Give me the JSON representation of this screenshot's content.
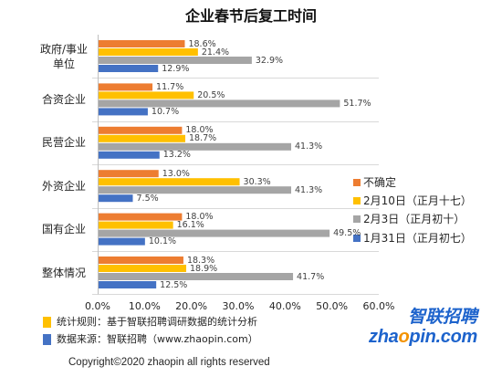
{
  "chart_data": {
    "type": "bar",
    "orientation": "horizontal",
    "title": "企业春节后复工时间",
    "categories": [
      "政府/事业单位",
      "合资企业",
      "民营企业",
      "外资企业",
      "国有企业",
      "整体情况"
    ],
    "series": [
      {
        "name": "不确定",
        "color": "#ED7D31",
        "values": [
          18.6,
          11.7,
          18.0,
          13.0,
          18.0,
          18.3
        ],
        "labels": [
          "18.6%",
          "11.7%",
          "18.0%",
          "13.0%",
          "18.0%",
          "18.3%"
        ]
      },
      {
        "name": "2月10日（正月十七）",
        "color": "#FFC000",
        "values": [
          21.4,
          20.5,
          18.7,
          30.3,
          16.1,
          18.9
        ],
        "labels": [
          "21.4%",
          "20.5%",
          "18.7%",
          "30.3%",
          "16.1%",
          "18.9%"
        ]
      },
      {
        "name": "2月3日（正月初十）",
        "color": "#A5A5A5",
        "values": [
          32.9,
          51.7,
          41.3,
          41.3,
          49.5,
          41.7
        ],
        "labels": [
          "32.9%",
          "51.7%",
          "41.3%",
          "41.3%",
          "49.5%",
          "41.7%"
        ]
      },
      {
        "name": "1月31日（正月初七）",
        "color": "#4472C4",
        "values": [
          12.9,
          10.7,
          13.2,
          7.5,
          10.1,
          12.5
        ],
        "labels": [
          "12.9%",
          "10.7%",
          "13.2%",
          "7.5%",
          "10.1%",
          "12.5%"
        ]
      }
    ],
    "xlim": [
      0,
      60
    ],
    "xticks": [
      "0.0%",
      "10.0%",
      "20.0%",
      "30.0%",
      "40.0%",
      "50.0%",
      "60.0%"
    ],
    "grid": true,
    "legend_position": "right",
    "data_labels": true
  },
  "notes": [
    {
      "marker_color": "#FFC000",
      "text": "统计规则：基于智联招聘调研数据的统计分析"
    },
    {
      "marker_color": "#4472C4",
      "text": "数据来源：智联招聘（www.zhaopin.com）"
    }
  ],
  "logo": {
    "name_cn": "智联招聘",
    "domain_parts": [
      "zha",
      "o",
      "pin.com"
    ],
    "brand_color": "#1D63CC",
    "accent_color": "#F39200"
  },
  "copyright": "Copyright©2020 zhaopin all rights reserved"
}
